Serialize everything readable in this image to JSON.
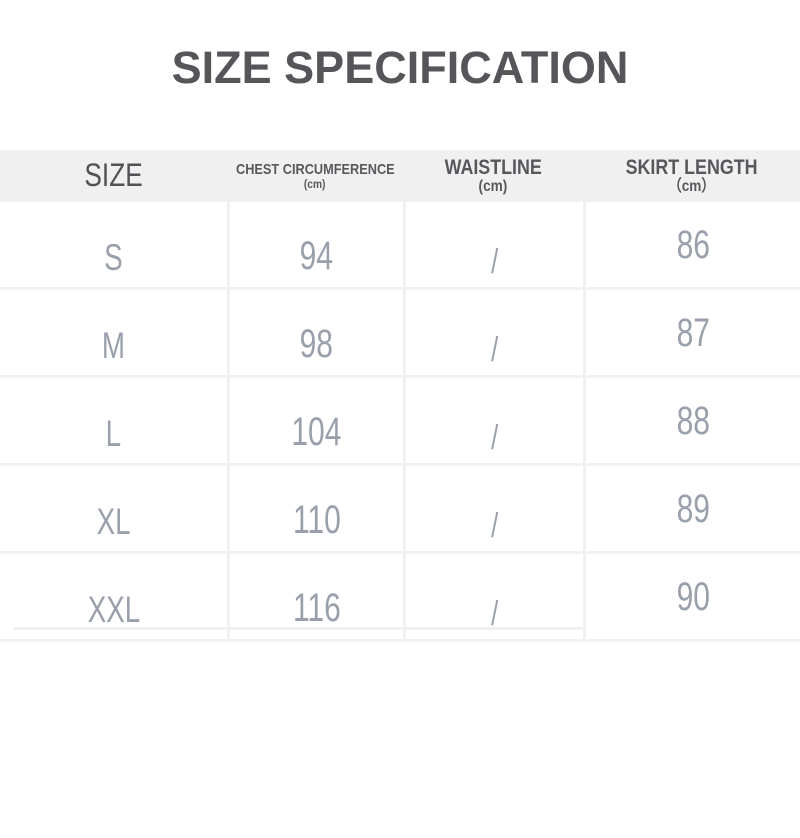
{
  "chart_data": {
    "type": "table",
    "title": "SIZE SPECIFICATION",
    "columns": [
      {
        "label": "SIZE",
        "sub": ""
      },
      {
        "label": "CHEST CIRCUMFERENCE",
        "sub": "(cm)"
      },
      {
        "label": "WAISTLINE",
        "sub": "(cm)"
      },
      {
        "label": "SKIRT LENGTH",
        "sub": "（cm）"
      }
    ],
    "rows": [
      {
        "size": "S",
        "chest": "94",
        "waist": "/",
        "skirt": "86"
      },
      {
        "size": "M",
        "chest": "98",
        "waist": "/",
        "skirt": "87"
      },
      {
        "size": "L",
        "chest": "104",
        "waist": "/",
        "skirt": "88"
      },
      {
        "size": "XL",
        "chest": "110",
        "waist": "/",
        "skirt": "89"
      },
      {
        "size": "XXL",
        "chest": "116",
        "waist": "/",
        "skirt": "90"
      }
    ]
  },
  "colors": {
    "background": "#ffffff",
    "title_text": "#55565a",
    "header_bg": "#f0f0f1",
    "header_text": "#57585c",
    "divider": "#f1f1f3",
    "value_text": "#9aa0ab"
  }
}
